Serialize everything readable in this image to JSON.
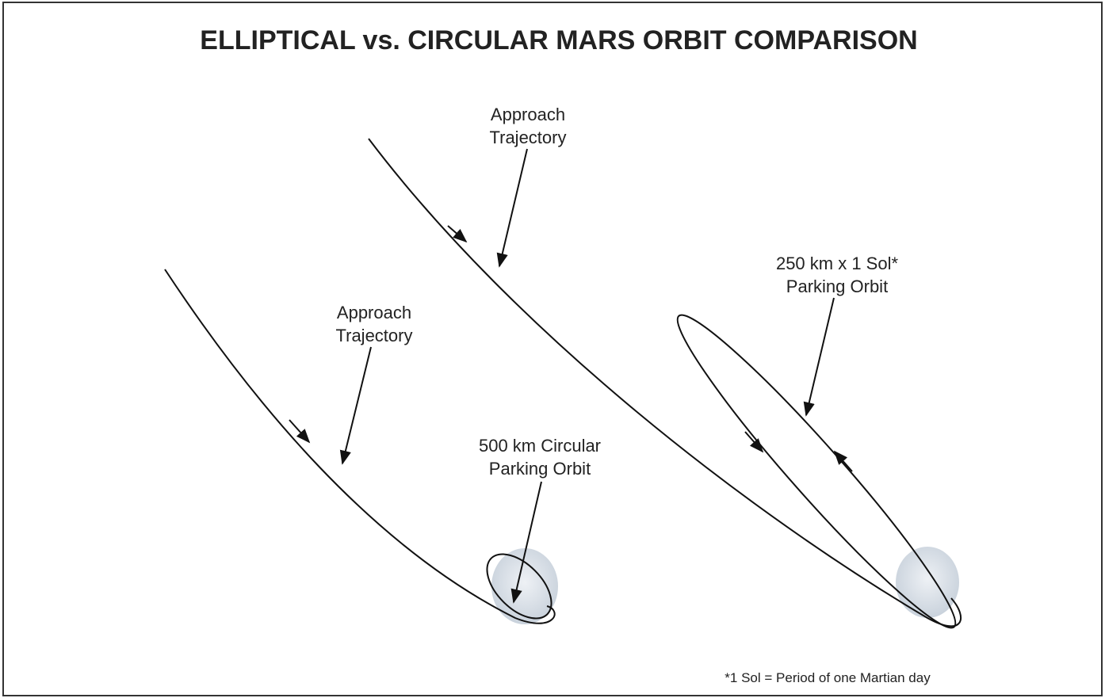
{
  "title": "ELLIPTICAL vs. CIRCULAR MARS ORBIT COMPARISON",
  "diagrams": [
    {
      "approach_label": [
        "Approach",
        "Trajectory"
      ],
      "orbit_label": [
        "500 km Circular",
        "Parking Orbit"
      ]
    },
    {
      "approach_label": [
        "Approach",
        "Trajectory"
      ],
      "orbit_label": [
        "250 km x 1 Sol*",
        "Parking Orbit"
      ]
    }
  ],
  "footnote": "*1 Sol = Period of one Martian day"
}
